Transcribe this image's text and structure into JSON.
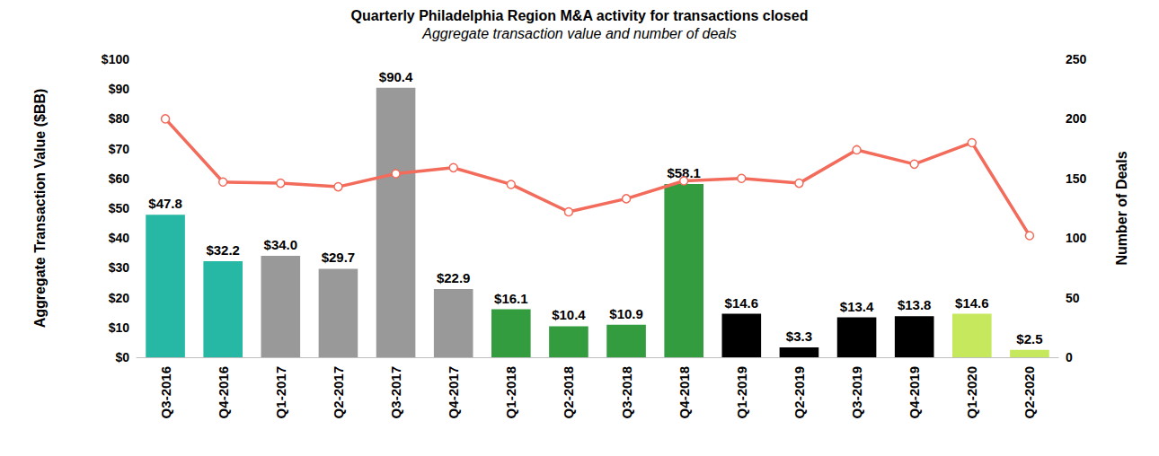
{
  "chart_data": {
    "type": "bar",
    "title": "Quarterly Philadelphia Region M&A activity for transactions closed",
    "subtitle": "Aggregate transaction value and number of deals",
    "ylabel": "Aggregate Transaction Value ($BB)",
    "y2label": "Number of Deals",
    "categories": [
      "Q3-2016",
      "Q4-2016",
      "Q1-2017",
      "Q2-2017",
      "Q3-2017",
      "Q4-2017",
      "Q1-2018",
      "Q2-2018",
      "Q3-2018",
      "Q4-2018",
      "Q1-2019",
      "Q2-2019",
      "Q3-2019",
      "Q4-2019",
      "Q1-2020",
      "Q2-2020"
    ],
    "ylim": [
      0,
      100
    ],
    "yticks": [
      {
        "value": 0,
        "label": "$0"
      },
      {
        "value": 10,
        "label": "$10"
      },
      {
        "value": 20,
        "label": "$20"
      },
      {
        "value": 30,
        "label": "$30"
      },
      {
        "value": 40,
        "label": "$40"
      },
      {
        "value": 50,
        "label": "$50"
      },
      {
        "value": 60,
        "label": "$60"
      },
      {
        "value": 70,
        "label": "$70"
      },
      {
        "value": 80,
        "label": "$80"
      },
      {
        "value": 90,
        "label": "$90"
      },
      {
        "value": 100,
        "label": "$100"
      }
    ],
    "y2lim": [
      0,
      250
    ],
    "y2ticks": [
      0,
      50,
      100,
      150,
      200,
      250
    ],
    "grid": false,
    "series": [
      {
        "type": "bar",
        "data_labels": true,
        "values": [
          47.8,
          32.2,
          34.0,
          29.7,
          90.4,
          22.9,
          16.1,
          10.4,
          10.9,
          58.1,
          14.6,
          3.3,
          13.4,
          13.8,
          14.6,
          2.5
        ],
        "value_labels": [
          "$47.8",
          "$32.2",
          "$34.0",
          "$29.7",
          "$90.4",
          "$22.9",
          "$16.1",
          "$10.4",
          "$10.9",
          "$58.1",
          "$14.6",
          "$3.3",
          "$13.4",
          "$13.8",
          "$14.6",
          "$2.5"
        ],
        "colors": [
          "#26b8a4",
          "#26b8a4",
          "#999999",
          "#999999",
          "#999999",
          "#999999",
          "#339c3f",
          "#339c3f",
          "#339c3f",
          "#339c3f",
          "#000000",
          "#000000",
          "#000000",
          "#000000",
          "#c5e85c",
          "#c5e85c"
        ]
      },
      {
        "type": "line",
        "axis": "y2",
        "color": "#f26b5b",
        "marker": "circle",
        "values": [
          200,
          147,
          146,
          143,
          154,
          159,
          145,
          122,
          133,
          148,
          150,
          146,
          174,
          162,
          180,
          102
        ]
      }
    ]
  }
}
